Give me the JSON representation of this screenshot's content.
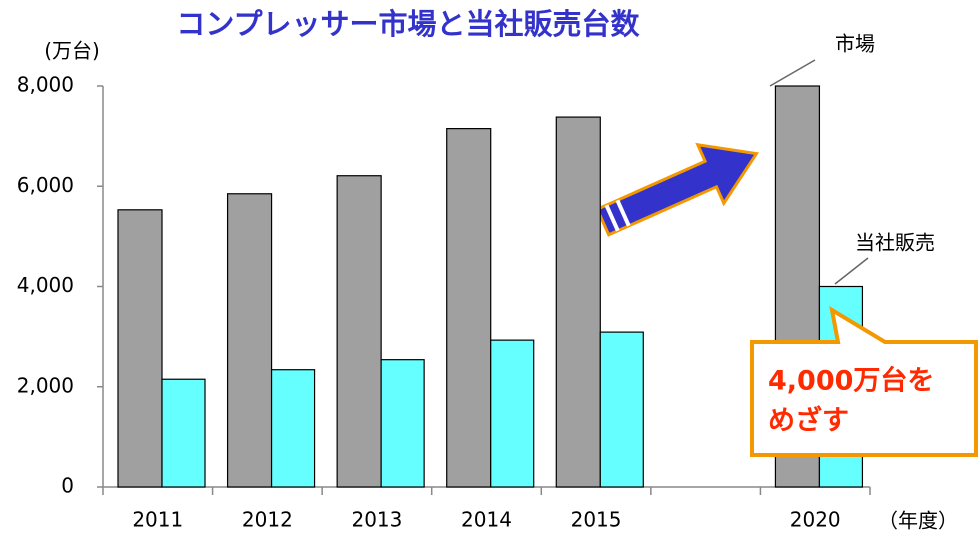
{
  "chart_data": {
    "type": "bar",
    "title": "コンプレッサー市場と当社販売台数",
    "y_label": "(万台)",
    "x_label": "（年度）",
    "categories": [
      "2011",
      "2012",
      "2013",
      "2014",
      "2015",
      null,
      "2020"
    ],
    "series": [
      {
        "name": "市場",
        "color": "#a0a0a0",
        "values": [
          5530,
          5850,
          6210,
          7150,
          7380,
          null,
          8000
        ]
      },
      {
        "name": "当社販売",
        "color": "#66ffff",
        "values": [
          2150,
          2340,
          2540,
          2930,
          3090,
          null,
          4000
        ]
      }
    ],
    "ylim": [
      0,
      8000
    ],
    "yticks": [
      0,
      {
        "value": 2000,
        "label": "2,000"
      },
      {
        "value": 4000,
        "label": "4,000"
      },
      {
        "value": 6000,
        "label": "6,000"
      },
      {
        "value": 8000,
        "label": "8,000"
      }
    ],
    "annotation": [
      "4,000万台を",
      "めざす"
    ]
  }
}
